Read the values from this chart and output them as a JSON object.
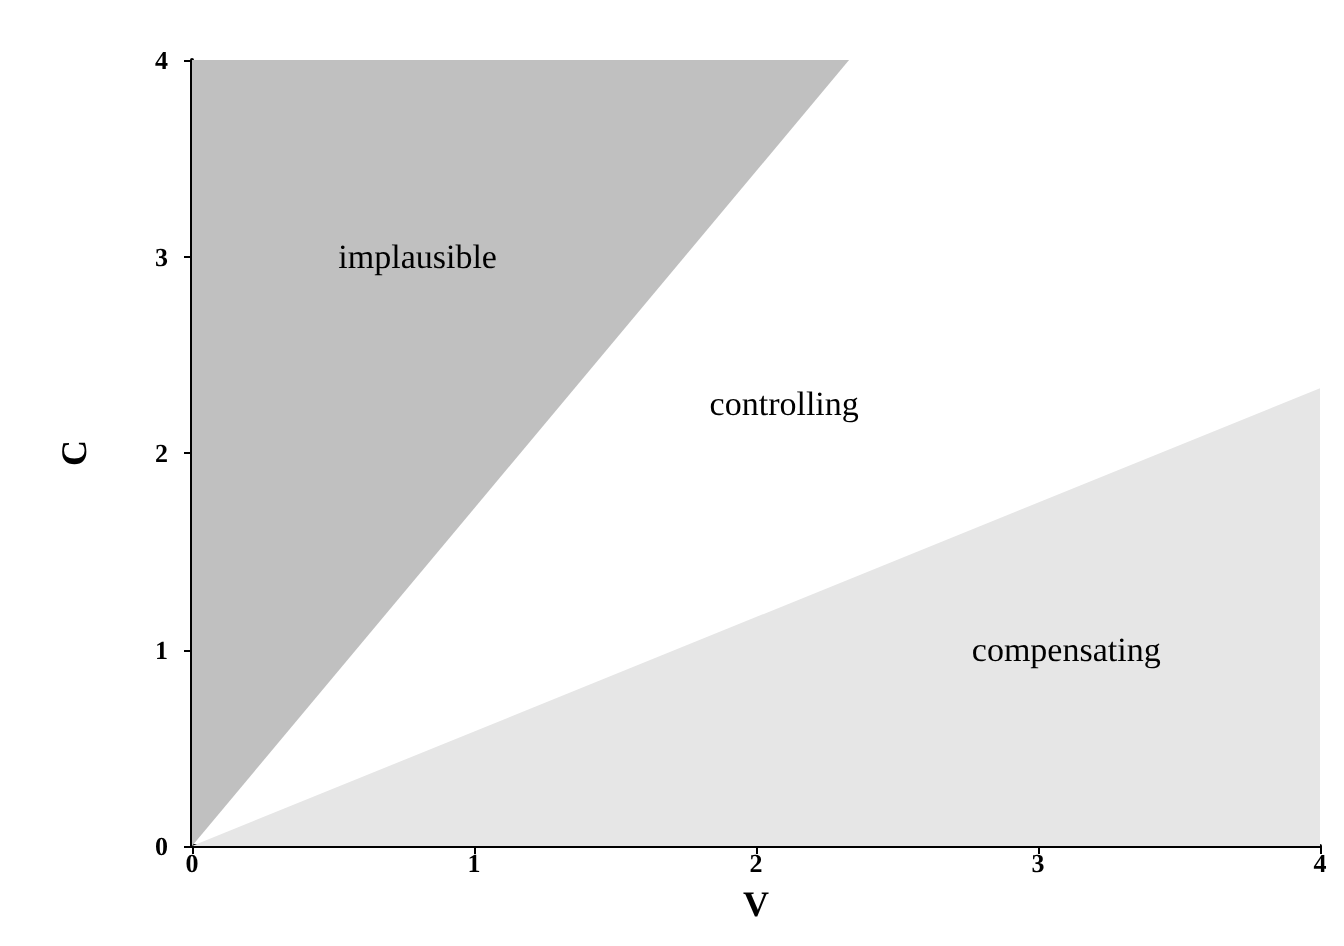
{
  "chart_data": {
    "type": "area",
    "xlabel": "V",
    "ylabel": "C",
    "xlim": [
      0,
      4
    ],
    "ylim": [
      0,
      4
    ],
    "xticks": [
      0,
      1,
      2,
      3,
      4
    ],
    "yticks": [
      0,
      1,
      2,
      3,
      4
    ],
    "grid": false,
    "series": [
      {
        "x": [
          0,
          2.33
        ],
        "values": [
          0,
          4
        ],
        "color": "#c0c0c0"
      },
      {
        "x": [
          0,
          4
        ],
        "values": [
          0,
          2.33
        ],
        "color": "#e6e6e6"
      }
    ],
    "annotations": [
      "implausible",
      "controlling",
      "compensating"
    ]
  }
}
